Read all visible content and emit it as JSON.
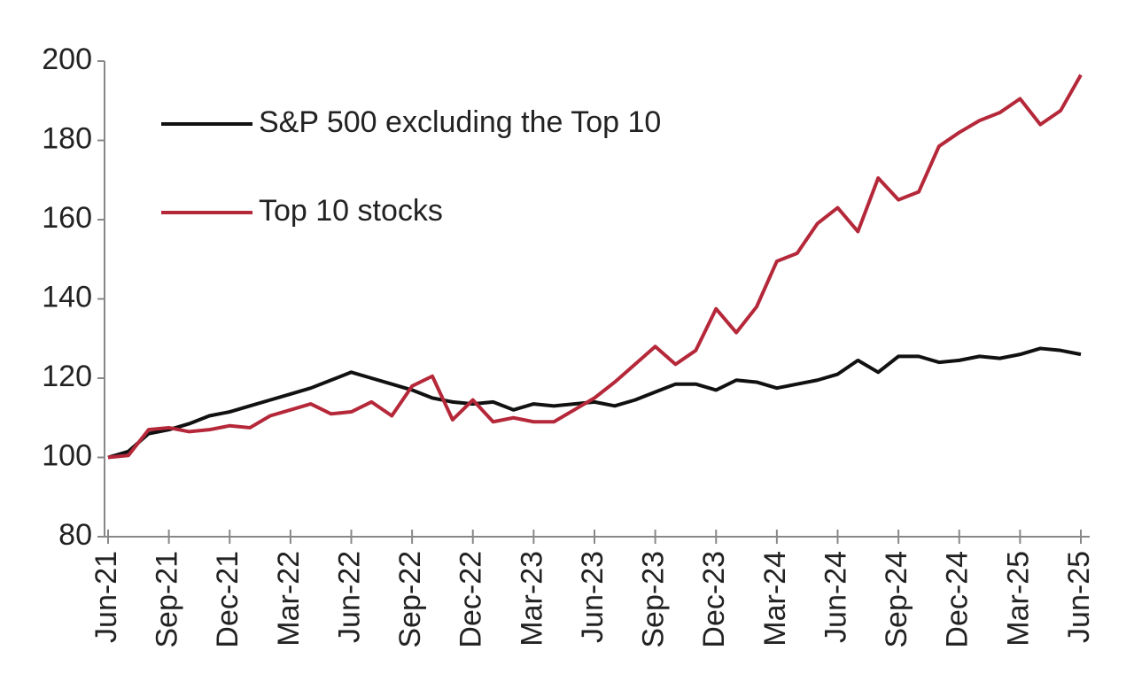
{
  "chart_data": {
    "type": "line",
    "categories": [
      "Jun-21",
      null,
      null,
      "Sep-21",
      null,
      null,
      "Dec-21",
      null,
      null,
      "Mar-22",
      null,
      null,
      "Jun-22",
      null,
      null,
      "Sep-22",
      null,
      null,
      "Dec-22",
      null,
      null,
      "Mar-23",
      null,
      null,
      "Jun-23",
      null,
      null,
      "Sep-23",
      null,
      null,
      "Dec-23",
      null,
      null,
      "Mar-24",
      null,
      null,
      "Jun-24",
      null,
      null,
      "Sep-24",
      null,
      null,
      "Dec-24",
      null,
      null,
      "Mar-25",
      null,
      null,
      "Jun-25"
    ],
    "series": [
      {
        "name": "S&P 500 excluding the Top 10",
        "color": "#111111",
        "values": [
          100,
          101.5,
          106,
          107,
          108.5,
          110.5,
          111.5,
          113,
          114.5,
          116,
          117.5,
          119.5,
          121.5,
          120,
          118.5,
          117,
          115,
          114,
          113.5,
          114,
          112,
          113.5,
          113,
          113.5,
          114,
          113,
          114.5,
          116.5,
          118.5,
          118.5,
          117,
          119.5,
          119,
          117.5,
          118.5,
          119.5,
          121,
          124.5,
          121.5,
          125.5,
          125.5,
          124,
          124.5,
          125.5,
          125,
          126,
          127.5,
          127,
          126
        ]
      },
      {
        "name": "Top 10 stocks",
        "color": "#b5283a",
        "values": [
          100,
          100.5,
          107,
          107.5,
          106.5,
          107,
          108,
          107.5,
          110.5,
          112,
          113.5,
          111,
          111.5,
          114,
          110.5,
          118,
          120.5,
          109.5,
          114.5,
          109,
          110,
          109,
          109,
          112,
          115,
          119,
          123.5,
          128,
          123.5,
          127,
          137.5,
          131.5,
          138,
          149.5,
          151.5,
          159,
          163,
          157,
          170.5,
          165,
          167,
          178.5,
          182,
          185,
          187,
          190.5,
          184,
          187.5,
          196.5
        ]
      }
    ],
    "ylim": [
      80,
      200
    ],
    "yticks": [
      80,
      100,
      120,
      140,
      160,
      180,
      200
    ],
    "grid": false,
    "legend": "upper left"
  }
}
